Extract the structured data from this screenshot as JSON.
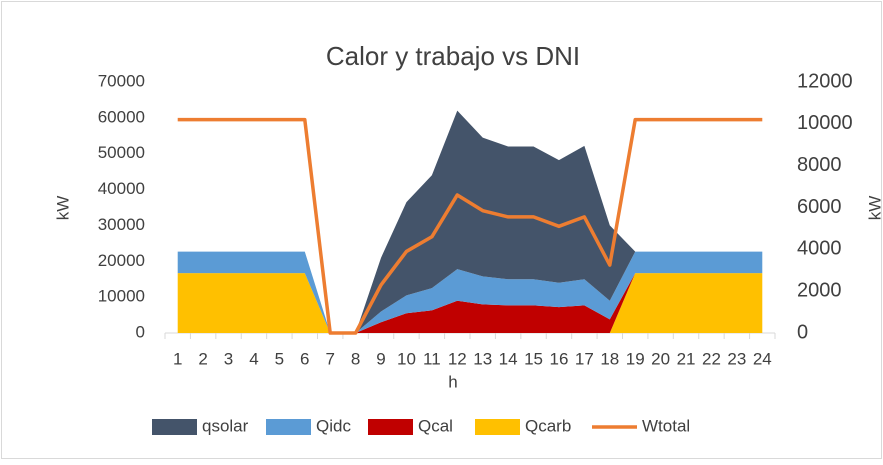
{
  "chart_data": {
    "type": "area",
    "title": "Calor y trabajo vs DNI",
    "xlabel": "h",
    "ylabel": "kW",
    "y2label": "kW",
    "categories": [
      "1",
      "2",
      "3",
      "4",
      "5",
      "6",
      "7",
      "8",
      "9",
      "10",
      "11",
      "12",
      "13",
      "14",
      "15",
      "16",
      "17",
      "18",
      "19",
      "20",
      "21",
      "22",
      "23",
      "24"
    ],
    "series": [
      {
        "name": "qsolar",
        "color": "#44546a",
        "type": "area",
        "values": [
          0,
          0,
          0,
          0,
          0,
          0,
          0,
          0,
          15000,
          26000,
          31500,
          44200,
          38700,
          37000,
          37000,
          34200,
          37200,
          21000,
          0,
          0,
          0,
          0,
          0,
          0
        ]
      },
      {
        "name": "Qidc",
        "color": "#5b9bd5",
        "type": "area",
        "values": [
          6000,
          6000,
          6000,
          6000,
          6000,
          6000,
          0,
          0,
          3000,
          5000,
          6200,
          8800,
          7800,
          7300,
          7300,
          6800,
          7300,
          5200,
          6000,
          6000,
          6000,
          6000,
          6000,
          6000
        ]
      },
      {
        "name": "Qcal",
        "color": "#c00000",
        "type": "area",
        "values": [
          0,
          0,
          0,
          0,
          0,
          0,
          0,
          0,
          3000,
          5500,
          6300,
          9000,
          8000,
          7700,
          7700,
          7200,
          7700,
          3800,
          0,
          0,
          0,
          0,
          0,
          0
        ]
      },
      {
        "name": "Qcarb",
        "color": "#ffc000",
        "type": "area",
        "values": [
          16700,
          16700,
          16700,
          16700,
          16700,
          16700,
          0,
          0,
          0,
          0,
          0,
          0,
          0,
          0,
          0,
          0,
          0,
          0,
          16700,
          16700,
          16700,
          16700,
          16700,
          16700
        ]
      },
      {
        "name": "Wtotal",
        "color": "#ed7d31",
        "type": "line",
        "axis": "y2",
        "values": [
          10200,
          10200,
          10200,
          10200,
          10200,
          10200,
          0,
          0,
          2300,
          3900,
          4600,
          6600,
          5850,
          5550,
          5550,
          5100,
          5550,
          3250,
          10200,
          10200,
          10200,
          10200,
          10200,
          10200
        ]
      }
    ],
    "ylim": [
      0,
      70000
    ],
    "yticks": [
      0,
      10000,
      20000,
      30000,
      40000,
      50000,
      60000,
      70000
    ],
    "y2lim": [
      0,
      12000
    ],
    "y2ticks": [
      0,
      2000,
      4000,
      6000,
      8000,
      10000,
      12000
    ],
    "legend": "bottom",
    "grid": false
  }
}
